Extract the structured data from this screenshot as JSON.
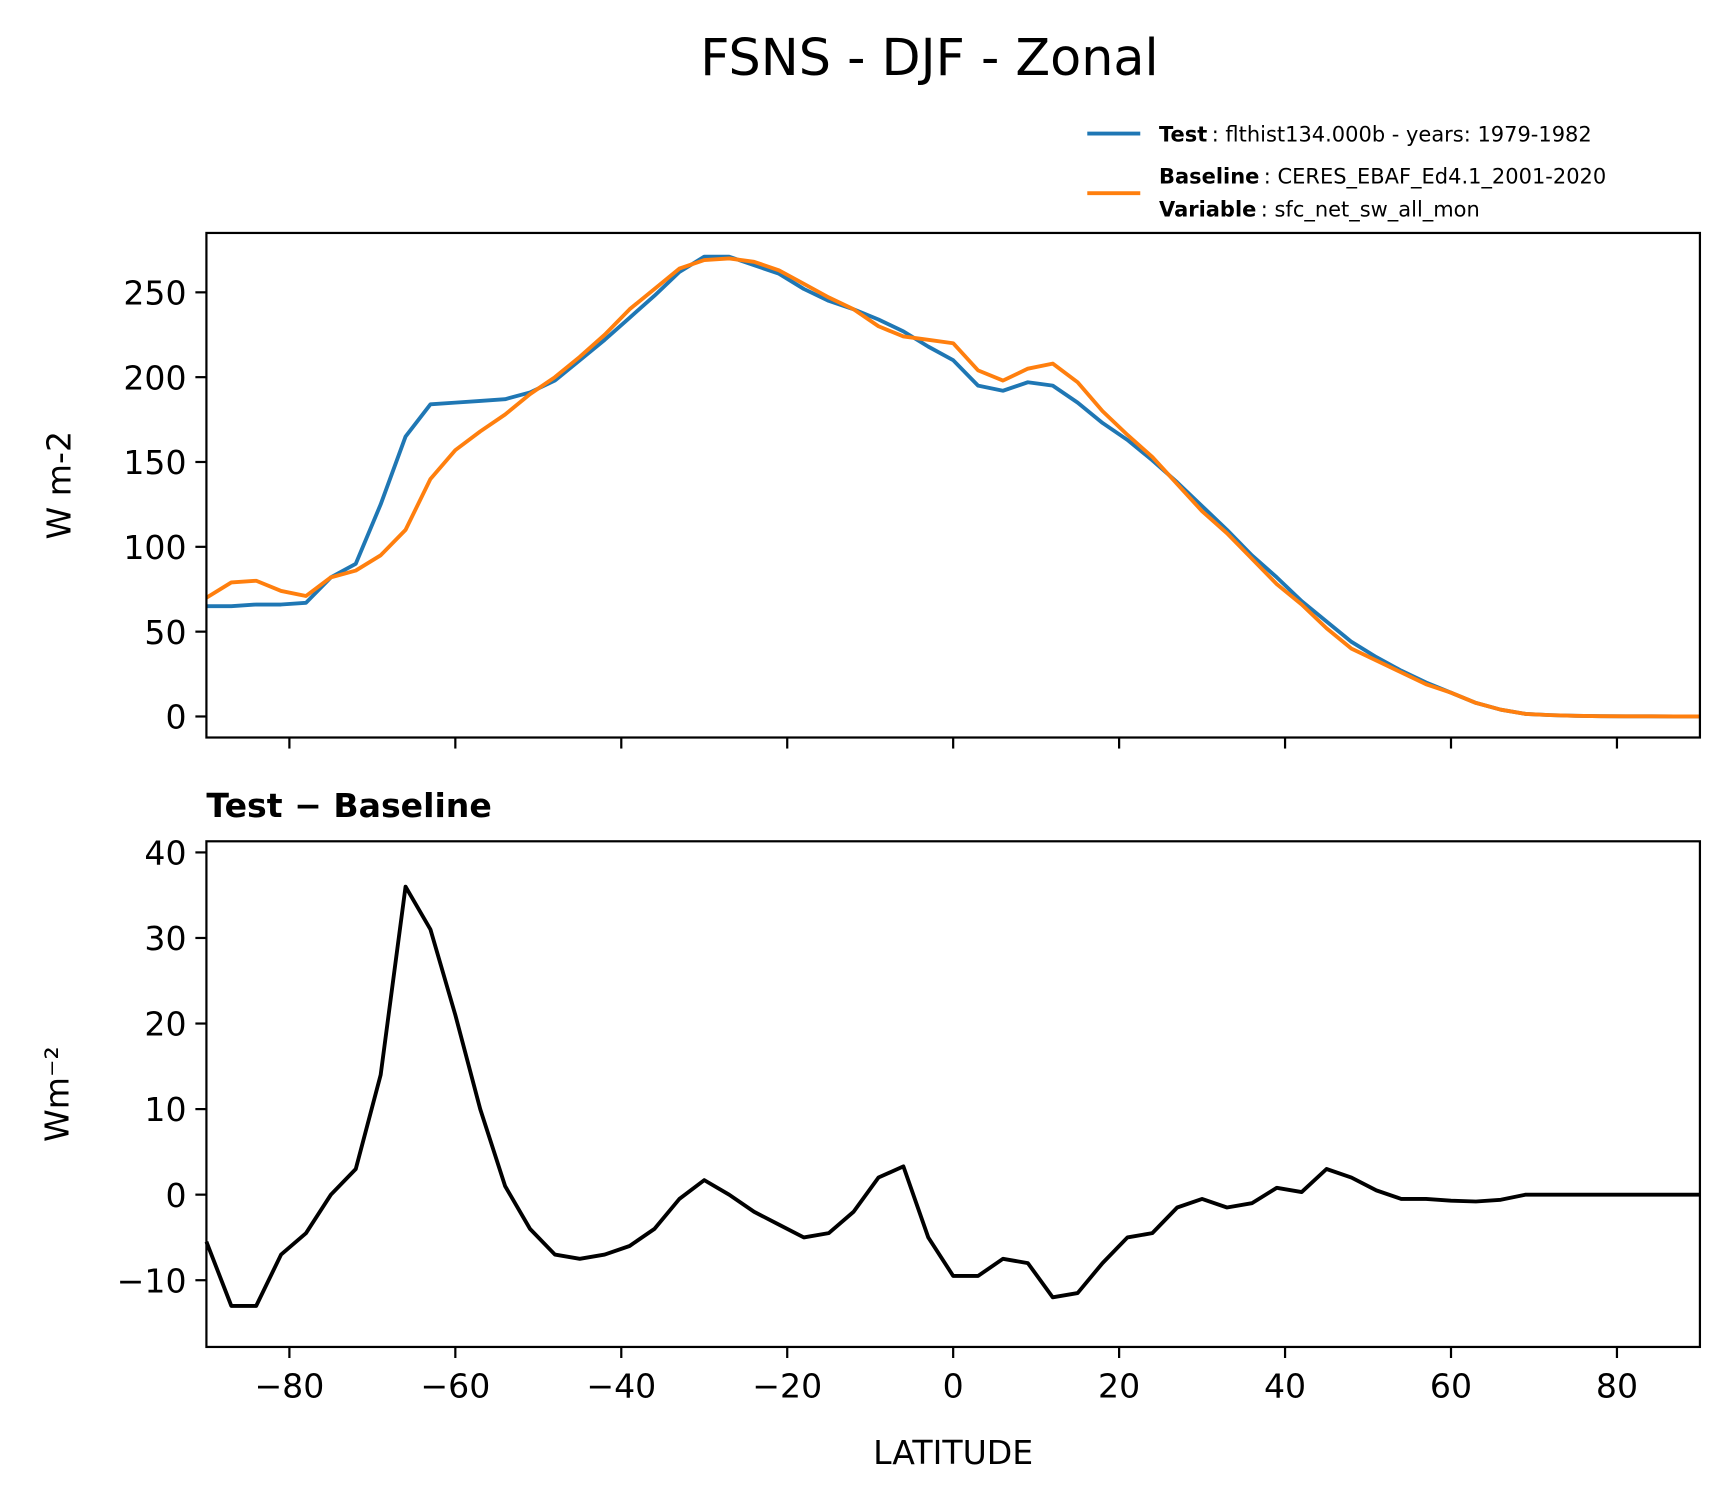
{
  "title": "FSNS - DJF - Zonal",
  "chart_data": [
    {
      "type": "line",
      "x": [
        -90,
        -87,
        -84,
        -81,
        -78,
        -75,
        -72,
        -69,
        -66,
        -63,
        -60,
        -57,
        -54,
        -51,
        -48,
        -45,
        -42,
        -39,
        -36,
        -33,
        -30,
        -27,
        -24,
        -21,
        -18,
        -15,
        -12,
        -9,
        -6,
        -3,
        0,
        3,
        6,
        9,
        12,
        15,
        18,
        21,
        24,
        27,
        30,
        33,
        36,
        39,
        42,
        45,
        48,
        51,
        54,
        57,
        60,
        63,
        66,
        69,
        72,
        75,
        78,
        81,
        84,
        87,
        90
      ],
      "series": [
        {
          "name": "Test",
          "description": ": flthist134.000b - years: 1979-1982",
          "color": "#1f77b4",
          "values": [
            65,
            65,
            66,
            66,
            67,
            82,
            90,
            125,
            165,
            184,
            185,
            186,
            187,
            191,
            198,
            210,
            222,
            235,
            248,
            262,
            271,
            271,
            266,
            261,
            252,
            245,
            240,
            234,
            227,
            218,
            210,
            195,
            192,
            197,
            195,
            185,
            173,
            163,
            151,
            138,
            124,
            110,
            95,
            82,
            68,
            56,
            44,
            35,
            27,
            20,
            14,
            8,
            4,
            1.5,
            0.8,
            0.4,
            0.2,
            0.1,
            0.1,
            0,
            0
          ]
        },
        {
          "name": "Baseline",
          "description": ": CERES_EBAF_Ed4.1_2001-2020",
          "color": "#ff7f0e",
          "values": [
            70,
            79,
            80,
            74,
            71,
            82,
            86,
            95,
            110,
            140,
            157,
            168,
            178,
            190,
            200,
            212,
            225,
            240,
            252,
            264,
            269,
            270,
            268,
            263,
            255,
            247,
            240,
            230,
            224,
            222,
            220,
            204,
            198,
            205,
            208,
            197,
            180,
            166,
            153,
            137,
            121,
            108,
            93,
            78,
            66,
            52,
            40,
            33,
            26,
            19,
            14,
            8,
            4,
            1.5,
            0.8,
            0.4,
            0.2,
            0.1,
            0.1,
            0,
            0
          ]
        }
      ],
      "legend_extra": {
        "name": "Variable",
        "description": ": sfc_net_sw_all_mon"
      },
      "ylabel": "W m-2",
      "xlim": [
        -90,
        90
      ],
      "xticks": [
        -80,
        -60,
        -40,
        -20,
        0,
        20,
        40,
        60,
        80
      ],
      "show_xtick_labels": false,
      "ylim": [
        -12.4,
        285
      ],
      "yticks": [
        0,
        50,
        100,
        150,
        200,
        250
      ]
    },
    {
      "type": "line",
      "title": "Test − Baseline",
      "x": [
        -90,
        -87,
        -84,
        -81,
        -78,
        -75,
        -72,
        -69,
        -66,
        -63,
        -60,
        -57,
        -54,
        -51,
        -48,
        -45,
        -42,
        -39,
        -36,
        -33,
        -30,
        -27,
        -24,
        -21,
        -18,
        -15,
        -12,
        -9,
        -6,
        -3,
        0,
        3,
        6,
        9,
        12,
        15,
        18,
        21,
        24,
        27,
        30,
        33,
        36,
        39,
        42,
        45,
        48,
        51,
        54,
        57,
        60,
        63,
        66,
        69,
        72,
        75,
        78,
        81,
        84,
        87,
        90
      ],
      "series": [
        {
          "color": "#000000",
          "values": [
            -5.5,
            -13,
            -13,
            -7,
            -4.5,
            0,
            3,
            14,
            36,
            31,
            21,
            10,
            1,
            -4,
            -7,
            -7.5,
            -7,
            -6,
            -4,
            -0.5,
            1.7,
            0,
            -2,
            -3.5,
            -5,
            -4.5,
            -2,
            2,
            3.3,
            -5,
            -9.5,
            -9.5,
            -7.5,
            -8,
            -12,
            -11.5,
            -8,
            -5,
            -4.5,
            -1.5,
            -0.5,
            -1.5,
            -1,
            0.8,
            0.3,
            3,
            2,
            0.5,
            -0.5,
            -0.5,
            -0.7,
            -0.8,
            -0.6,
            0,
            0,
            0,
            0,
            0,
            0,
            0,
            0
          ]
        }
      ],
      "xlabel": "LATITUDE",
      "ylabel": "Wm⁻²",
      "xlim": [
        -90,
        90
      ],
      "xticks": [
        {
          "value": -80,
          "label": "−80"
        },
        {
          "value": -60,
          "label": "−60"
        },
        {
          "value": -40,
          "label": "−40"
        },
        {
          "value": -20,
          "label": "−20"
        },
        0,
        20,
        40,
        60,
        80
      ],
      "show_xtick_labels": true,
      "ylim": [
        -17.8,
        41.3
      ],
      "yticks": [
        {
          "value": -10,
          "label": "−10"
        },
        0,
        10,
        20,
        30,
        40
      ]
    }
  ]
}
